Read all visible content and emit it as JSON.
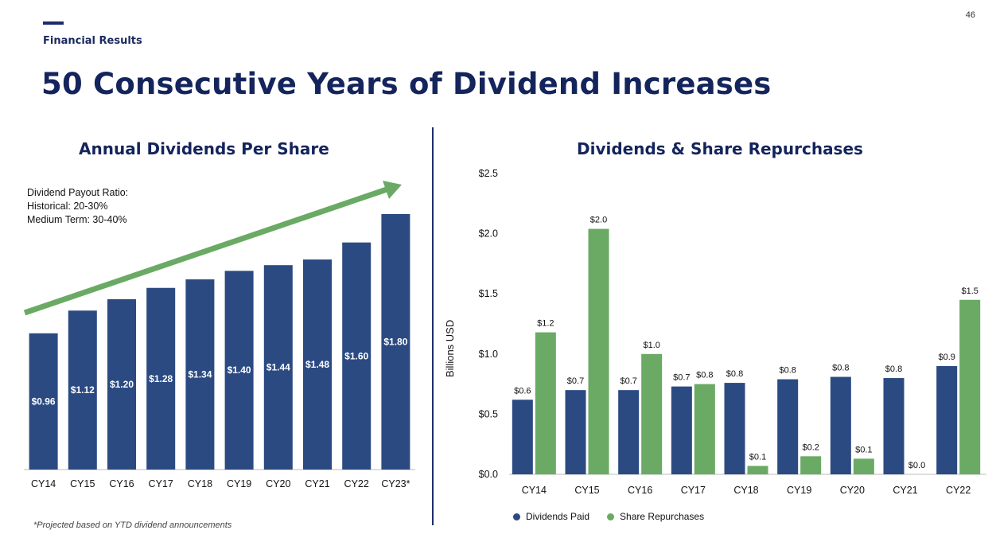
{
  "header": {
    "section": "Financial Results",
    "page_number": "46",
    "title": "50 Consecutive Years of Dividend Increases"
  },
  "left_chart": {
    "payout_note": [
      "Dividend Payout Ratio:",
      "Historical: 20-30%",
      "Medium Term: 30-40%"
    ],
    "footnote": "*Projected based on YTD dividend announcements"
  },
  "right_chart": {
    "ylabel": "Billions USD"
  },
  "colors": {
    "navy": "#2b4a82",
    "green": "#6aaa64",
    "title": "#14245c"
  },
  "chart_data": [
    {
      "type": "bar",
      "title": "Annual Dividends Per Share",
      "categories": [
        "CY14",
        "CY15",
        "CY16",
        "CY17",
        "CY18",
        "CY19",
        "CY20",
        "CY21",
        "CY22",
        "CY23*"
      ],
      "values": [
        0.96,
        1.12,
        1.2,
        1.28,
        1.34,
        1.4,
        1.44,
        1.48,
        1.6,
        1.8
      ],
      "data_labels": [
        "$0.96",
        "$1.12",
        "$1.20",
        "$1.28",
        "$1.34",
        "$1.40",
        "$1.44",
        "$1.48",
        "$1.60",
        "$1.80"
      ],
      "ylim": [
        0,
        1.8
      ],
      "trend_arrow": true,
      "grid": false
    },
    {
      "type": "bar",
      "title": "Dividends & Share Repurchases",
      "ylabel": "Billions USD",
      "categories": [
        "CY14",
        "CY15",
        "CY16",
        "CY17",
        "CY18",
        "CY19",
        "CY20",
        "CY21",
        "CY22"
      ],
      "series": [
        {
          "name": "Dividends Paid",
          "color": "#2b4a82",
          "values": [
            0.62,
            0.7,
            0.7,
            0.73,
            0.76,
            0.79,
            0.81,
            0.8,
            0.9
          ],
          "labels": [
            "$0.6",
            "$0.7",
            "$0.7",
            "$0.7",
            "$0.8",
            "$0.8",
            "$0.8",
            "$0.8",
            "$0.9"
          ]
        },
        {
          "name": "Share Repurchases",
          "color": "#6aaa64",
          "values": [
            1.18,
            2.04,
            1.0,
            0.75,
            0.07,
            0.15,
            0.13,
            0.0,
            1.45
          ],
          "labels": [
            "$1.2",
            "$2.0",
            "$1.0",
            "$0.8",
            "$0.1",
            "$0.2",
            "$0.1",
            "$0.0",
            "$1.5"
          ]
        }
      ],
      "yticks": [
        "$0.0",
        "$0.5",
        "$1.0",
        "$1.5",
        "$2.0",
        "$2.5"
      ],
      "ylim": [
        0,
        2.5
      ],
      "legend": "bottom",
      "grid": false
    }
  ]
}
